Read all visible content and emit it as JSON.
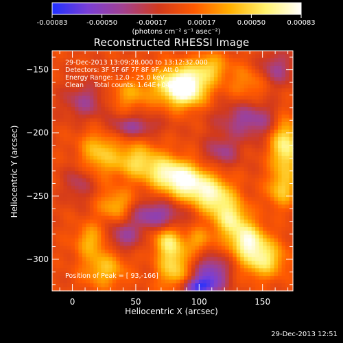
{
  "colorbar": {
    "ticks": [
      "-0.00083",
      "-0.00050",
      "-0.00017",
      "0.00017",
      "0.00050",
      "0.00083"
    ],
    "unit_label": "(photons cm⁻² s⁻¹ asec⁻²)",
    "stops": [
      "#2030ff",
      "#7a3fd6",
      "#a2418f",
      "#d23a1c",
      "#ff5a00",
      "#ffb000",
      "#fff36e",
      "#ffffff"
    ]
  },
  "chart_data": {
    "type": "heatmap",
    "title": "Reconstructed RHESSI Image",
    "xlabel": "Heliocentric X (arcsec)",
    "ylabel": "Heliocentric Y (arcsec)",
    "xlim": [
      -16,
      174
    ],
    "ylim": [
      -325,
      -135
    ],
    "xticks": [
      0,
      50,
      100,
      150
    ],
    "yticks": [
      -150,
      -200,
      -250,
      -300
    ],
    "colorbar_range": [
      -0.00083,
      0.00083
    ],
    "blobs": [
      {
        "x": 88,
        "y": -165,
        "sx": 12,
        "sy": 10,
        "a": 1.2
      },
      {
        "x": 78,
        "y": -158,
        "sx": 18,
        "sy": 10,
        "a": 0.35
      },
      {
        "x": 108,
        "y": -148,
        "sx": 10,
        "sy": 8,
        "a": 0.55
      },
      {
        "x": 140,
        "y": -160,
        "sx": 12,
        "sy": 10,
        "a": 0.35
      },
      {
        "x": 45,
        "y": -170,
        "sx": 12,
        "sy": 8,
        "a": 0.4
      },
      {
        "x": 20,
        "y": -215,
        "sx": 10,
        "sy": 12,
        "a": 0.55
      },
      {
        "x": 50,
        "y": -222,
        "sx": 14,
        "sy": 10,
        "a": 0.65
      },
      {
        "x": 75,
        "y": -232,
        "sx": 12,
        "sy": 9,
        "a": 0.75
      },
      {
        "x": 92,
        "y": -240,
        "sx": 12,
        "sy": 10,
        "a": 0.9
      },
      {
        "x": 112,
        "y": -250,
        "sx": 11,
        "sy": 10,
        "a": 0.8
      },
      {
        "x": 125,
        "y": -268,
        "sx": 10,
        "sy": 10,
        "a": 0.75
      },
      {
        "x": 138,
        "y": -285,
        "sx": 10,
        "sy": 9,
        "a": 0.85
      },
      {
        "x": 150,
        "y": -300,
        "sx": 12,
        "sy": 10,
        "a": 0.8
      },
      {
        "x": 168,
        "y": -210,
        "sx": 8,
        "sy": 16,
        "a": 0.9
      },
      {
        "x": 165,
        "y": -245,
        "sx": 8,
        "sy": 10,
        "a": 0.55
      },
      {
        "x": 35,
        "y": -258,
        "sx": 10,
        "sy": 9,
        "a": 0.55
      },
      {
        "x": 15,
        "y": -285,
        "sx": 9,
        "sy": 9,
        "a": 0.5
      },
      {
        "x": 25,
        "y": -308,
        "sx": 12,
        "sy": 10,
        "a": 0.55
      },
      {
        "x": 80,
        "y": -305,
        "sx": 9,
        "sy": 14,
        "a": 0.7
      },
      {
        "x": 75,
        "y": -285,
        "sx": 8,
        "sy": 8,
        "a": 0.55
      },
      {
        "x": 100,
        "y": -285,
        "sx": 7,
        "sy": 7,
        "a": 0.4
      },
      {
        "x": 48,
        "y": -195,
        "sx": 14,
        "sy": 6,
        "a": -0.5
      },
      {
        "x": 10,
        "y": -175,
        "sx": 12,
        "sy": 10,
        "a": -0.45
      },
      {
        "x": 140,
        "y": -190,
        "sx": 18,
        "sy": 10,
        "a": -0.55
      },
      {
        "x": 118,
        "y": -215,
        "sx": 10,
        "sy": 8,
        "a": -0.45
      },
      {
        "x": 65,
        "y": -265,
        "sx": 16,
        "sy": 8,
        "a": -0.65
      },
      {
        "x": 40,
        "y": -282,
        "sx": 10,
        "sy": 8,
        "a": -0.5
      },
      {
        "x": 110,
        "y": -310,
        "sx": 10,
        "sy": 9,
        "a": -0.7
      },
      {
        "x": 100,
        "y": -322,
        "sx": 10,
        "sy": 5,
        "a": -0.9
      },
      {
        "x": 160,
        "y": -150,
        "sx": 10,
        "sy": 10,
        "a": -0.5
      },
      {
        "x": 5,
        "y": -240,
        "sx": 8,
        "sy": 10,
        "a": -0.35
      }
    ]
  },
  "overlay": {
    "line1": "29-Dec-2013 13:09:28.000 to 13:12:32.000",
    "line2": "Detectors: 3F 5F 6F 7F 8F 9F, Att 0",
    "line3": "Energy Range: 12.0 - 25.0 keV",
    "line4": "Clean     Total counts: 1.64E+04",
    "peak": "Position of Peak = [ 93,-166]"
  },
  "footer": "29-Dec-2013 12:51"
}
